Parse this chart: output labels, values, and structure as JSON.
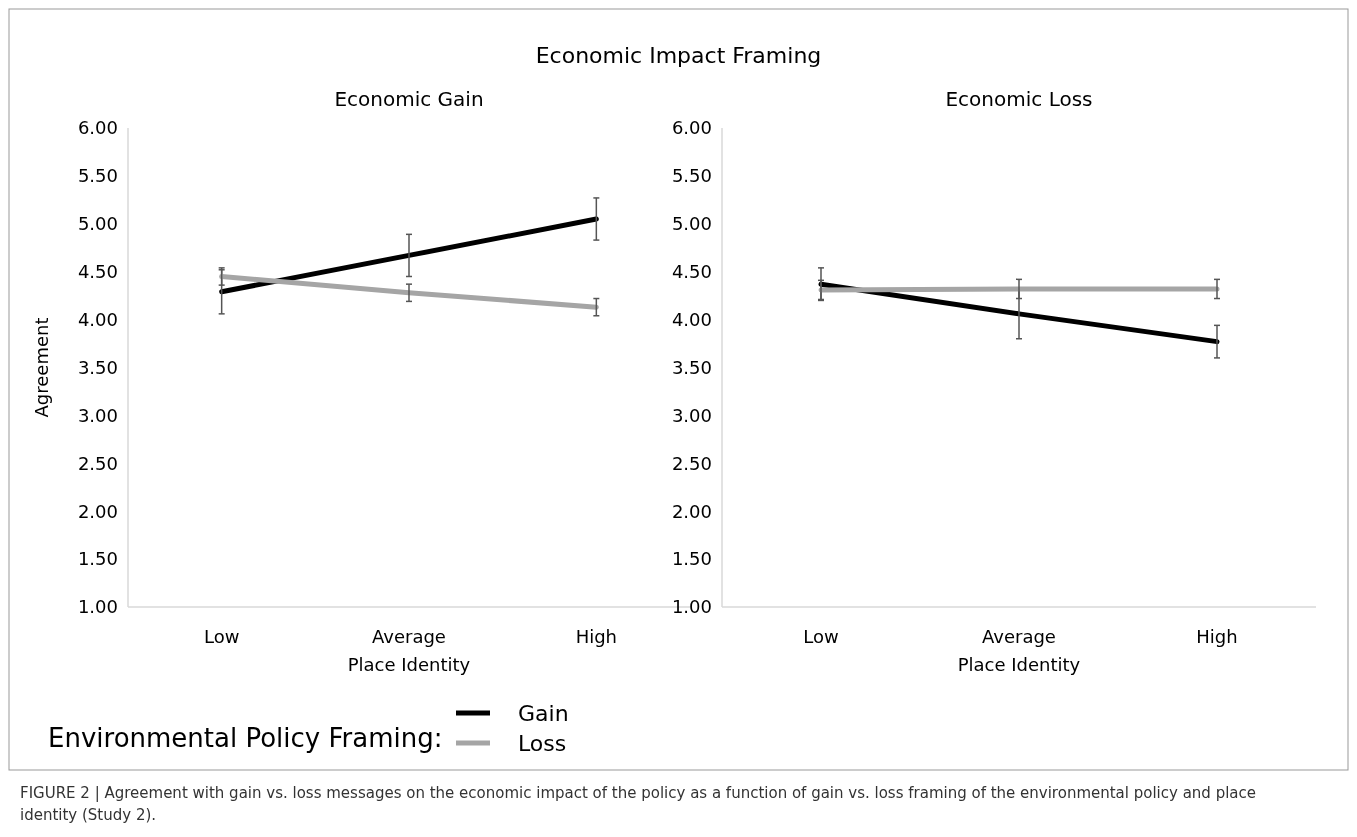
{
  "chart_data": [
    {
      "type": "line",
      "title": "Economic Gain",
      "xlabel": "Place Identity",
      "ylabel": "Agreement",
      "categories": [
        "Low",
        "Average",
        "High"
      ],
      "series": [
        {
          "name": "Gain",
          "color": "#000000",
          "values": [
            4.29,
            4.67,
            5.05
          ],
          "errors": [
            0.23,
            0.22,
            0.22
          ]
        },
        {
          "name": "Loss",
          "color": "#a5a5a5",
          "values": [
            4.45,
            4.28,
            4.13
          ],
          "errors": [
            0.09,
            0.09,
            0.09
          ]
        }
      ],
      "ylim": [
        1,
        6
      ],
      "yticks": [
        {
          "value": 1,
          "label": "1.00"
        },
        {
          "value": 1.5,
          "label": "1.50"
        },
        {
          "value": 2,
          "label": "2.00"
        },
        {
          "value": 2.5,
          "label": "2.50"
        },
        {
          "value": 3,
          "label": "3.00"
        },
        {
          "value": 3.5,
          "label": "3.50"
        },
        {
          "value": 4,
          "label": "4.00"
        },
        {
          "value": 4.5,
          "label": "4.50"
        },
        {
          "value": 5,
          "label": "5.00"
        },
        {
          "value": 5.5,
          "label": "5.50"
        },
        {
          "value": 6,
          "label": "6.00"
        }
      ],
      "grid": false,
      "legend": "bottom",
      "legend_title": "Environmental Policy Framing:",
      "line_style": "solid",
      "marker": "none",
      "annotations": [
        "Economic Impact Framing",
        "FIGURE 2 | Agreement with gain vs. loss messages on the economic impact of the policy as a function of gain vs. loss framing of the environmental policy and place identity (Study 2)."
      ]
    },
    {
      "type": "line",
      "title": "Economic Loss",
      "xlabel": "Place Identity",
      "categories": [
        "Low",
        "Average",
        "High"
      ],
      "series": [
        {
          "color": "#000000",
          "values": [
            4.37,
            4.06,
            3.77
          ],
          "errors": [
            0.17,
            0.26,
            0.17
          ]
        },
        {
          "color": "#a5a5a5",
          "values": [
            4.31,
            4.32,
            4.32
          ],
          "errors": [
            0.1,
            0.1,
            0.1
          ]
        }
      ],
      "ylim": [
        1,
        6
      ],
      "yticks": [
        {
          "value": 1,
          "label": "1.00"
        },
        {
          "value": 1.5,
          "label": "1.50"
        },
        {
          "value": 2,
          "label": "2.00"
        },
        {
          "value": 2.5,
          "label": "2.50"
        },
        {
          "value": 3,
          "label": "3.00"
        },
        {
          "value": 3.5,
          "label": "3.50"
        },
        {
          "value": 4,
          "label": "4.00"
        },
        {
          "value": 4.5,
          "label": "4.50"
        },
        {
          "value": 5,
          "label": "5.00"
        },
        {
          "value": 5.5,
          "label": "5.50"
        },
        {
          "value": 6,
          "label": "6.00"
        }
      ],
      "grid": false,
      "legend": false,
      "line_style": "solid",
      "marker": "none"
    }
  ]
}
